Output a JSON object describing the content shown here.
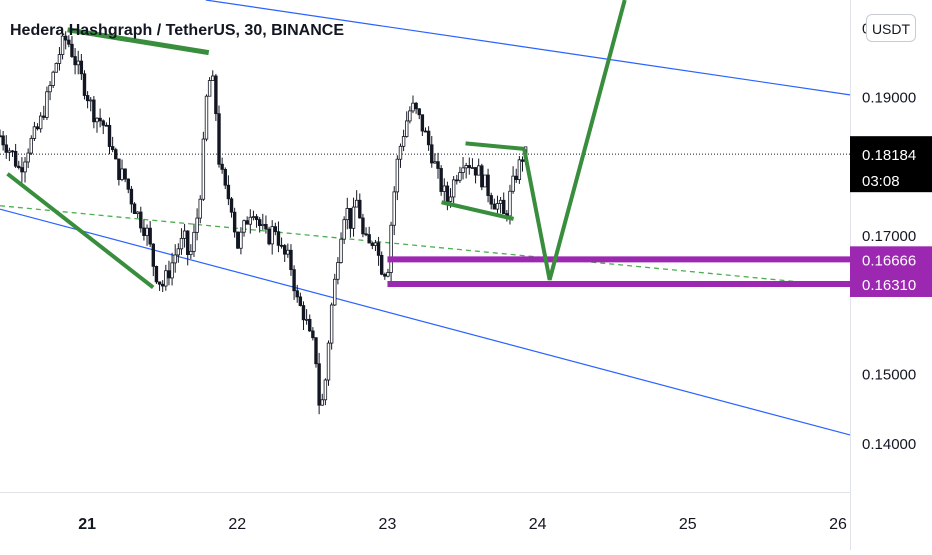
{
  "header": {
    "title": "Hedera Hashgraph / TetherUS, 30, BINANCE",
    "currency_button": "USDT"
  },
  "chart_data": {
    "type": "candlestick",
    "symbol": "Hedera Hashgraph / TetherUS",
    "interval": "30",
    "exchange": "BINANCE",
    "currency": "USDT",
    "x_ticks": [
      {
        "label": "21",
        "x": 21
      },
      {
        "label": "22",
        "x": 22
      },
      {
        "label": "23",
        "x": 23
      },
      {
        "label": "24",
        "x": 24
      },
      {
        "label": "25",
        "x": 25
      },
      {
        "label": "26",
        "x": 26
      }
    ],
    "x_range": [
      20.42,
      26.08
    ],
    "y_range": [
      0.1335,
      0.2041
    ],
    "y_ticks": [
      "0.14000",
      "0.15000",
      "0.17000",
      "0.19000",
      "0.20000"
    ],
    "last_price": {
      "value": "0.18184",
      "countdown": "03:08",
      "color": "#000000"
    },
    "price_levels": [
      {
        "value": 0.16666,
        "label": "0.16666",
        "x_start": 23.0,
        "color": "#9c27b0"
      },
      {
        "value": 0.1631,
        "label": "0.16310",
        "x_start": 23.0,
        "color": "#9c27b0"
      }
    ],
    "price_path": [
      [
        20.42,
        0.1845
      ],
      [
        20.5,
        0.182
      ],
      [
        20.55,
        0.1795
      ],
      [
        20.6,
        0.1825
      ],
      [
        20.68,
        0.1858
      ],
      [
        20.75,
        0.1912
      ],
      [
        20.8,
        0.1955
      ],
      [
        20.85,
        0.1985
      ],
      [
        20.88,
        0.1978
      ],
      [
        20.95,
        0.1935
      ],
      [
        21.0,
        0.1905
      ],
      [
        21.05,
        0.1875
      ],
      [
        21.1,
        0.1865
      ],
      [
        21.15,
        0.1838
      ],
      [
        21.2,
        0.1795
      ],
      [
        21.25,
        0.1785
      ],
      [
        21.3,
        0.175
      ],
      [
        21.35,
        0.1725
      ],
      [
        21.4,
        0.1705
      ],
      [
        21.45,
        0.165
      ],
      [
        21.5,
        0.1628
      ],
      [
        21.55,
        0.1652
      ],
      [
        21.6,
        0.1682
      ],
      [
        21.65,
        0.1695
      ],
      [
        21.68,
        0.1665
      ],
      [
        21.72,
        0.1708
      ],
      [
        21.75,
        0.1755
      ],
      [
        21.78,
        0.1845
      ],
      [
        21.8,
        0.1915
      ],
      [
        21.83,
        0.1932
      ],
      [
        21.86,
        0.1875
      ],
      [
        21.88,
        0.1805
      ],
      [
        21.92,
        0.1765
      ],
      [
        21.96,
        0.1748
      ],
      [
        22.0,
        0.1685
      ],
      [
        22.05,
        0.1715
      ],
      [
        22.1,
        0.1745
      ],
      [
        22.15,
        0.1715
      ],
      [
        22.2,
        0.1695
      ],
      [
        22.25,
        0.1715
      ],
      [
        22.3,
        0.1675
      ],
      [
        22.35,
        0.1665
      ],
      [
        22.4,
        0.1605
      ],
      [
        22.45,
        0.1585
      ],
      [
        22.48,
        0.1555
      ],
      [
        22.52,
        0.1535
      ],
      [
        22.55,
        0.1445
      ],
      [
        22.58,
        0.1475
      ],
      [
        22.62,
        0.1585
      ],
      [
        22.65,
        0.1635
      ],
      [
        22.68,
        0.1695
      ],
      [
        22.72,
        0.1745
      ],
      [
        22.76,
        0.1715
      ],
      [
        22.8,
        0.1755
      ],
      [
        22.84,
        0.1695
      ],
      [
        22.88,
        0.1685
      ],
      [
        22.92,
        0.1702
      ],
      [
        22.95,
        0.1658
      ],
      [
        23.0,
        0.1648
      ],
      [
        23.03,
        0.1735
      ],
      [
        23.07,
        0.1815
      ],
      [
        23.12,
        0.1862
      ],
      [
        23.16,
        0.1888
      ],
      [
        23.2,
        0.1875
      ],
      [
        23.25,
        0.1848
      ],
      [
        23.3,
        0.1815
      ],
      [
        23.35,
        0.1775
      ],
      [
        23.4,
        0.1752
      ],
      [
        23.45,
        0.1785
      ],
      [
        23.5,
        0.1812
      ],
      [
        23.55,
        0.1805
      ],
      [
        23.6,
        0.1795
      ],
      [
        23.65,
        0.1775
      ],
      [
        23.7,
        0.1752
      ],
      [
        23.75,
        0.1742
      ],
      [
        23.78,
        0.1725
      ],
      [
        23.82,
        0.1762
      ],
      [
        23.86,
        0.1792
      ],
      [
        23.9,
        0.1815
      ],
      [
        23.93,
        0.18184
      ]
    ],
    "annotations": {
      "channel_lines": [
        {
          "from": [
            21.79,
            0.2041
          ],
          "to": [
            26.08,
            0.1904
          ],
          "color": "#2962ff"
        },
        {
          "from": [
            20.42,
            0.1739
          ],
          "to": [
            26.08,
            0.1413
          ],
          "color": "#2962ff"
        }
      ],
      "dashed_line": {
        "from": [
          20.42,
          0.1744
        ],
        "to": [
          26.08,
          0.1627
        ],
        "color": "#4caf50"
      },
      "drawings": [
        {
          "points": [
            [
              20.87,
              0.1998
            ],
            [
              21.81,
              0.1965
            ]
          ],
          "color": "#388e3c",
          "width": 5
        },
        {
          "points": [
            [
              20.47,
              0.179
            ],
            [
              21.44,
              0.1626
            ]
          ],
          "color": "#388e3c",
          "width": 4
        },
        {
          "points": [
            [
              23.52,
              0.1834
            ],
            [
              23.91,
              0.1826
            ]
          ],
          "color": "#388e3c",
          "width": 4
        },
        {
          "points": [
            [
              23.36,
              0.1749
            ],
            [
              23.84,
              0.1725
            ]
          ],
          "color": "#388e3c",
          "width": 4
        },
        {
          "points": [
            [
              23.91,
              0.1826
            ],
            [
              24.08,
              0.1637
            ],
            [
              24.58,
              0.2041
            ]
          ],
          "color": "#388e3c",
          "width": 4
        }
      ]
    }
  }
}
